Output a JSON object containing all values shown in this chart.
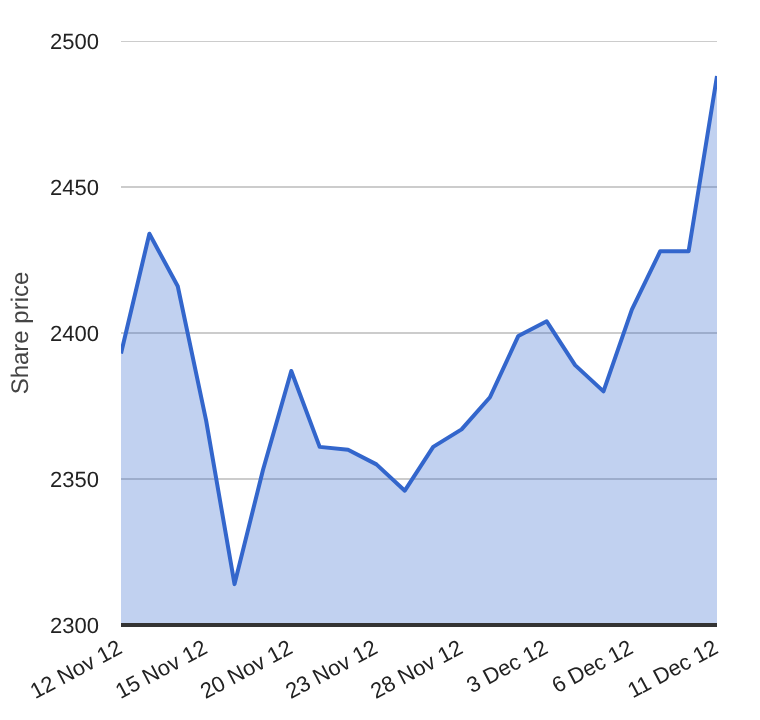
{
  "chart_data": {
    "type": "area",
    "ylabel": "Share price",
    "categories": [
      "12 Nov 12",
      null,
      null,
      "15 Nov 12",
      null,
      null,
      "20 Nov 12",
      null,
      null,
      "23 Nov 12",
      null,
      null,
      "28 Nov 12",
      null,
      null,
      "3 Dec 12",
      null,
      null,
      "6 Dec 12",
      null,
      null,
      "11 Dec 12"
    ],
    "series": [
      {
        "color": "#3366cc",
        "values": [
          2393,
          2434,
          2416,
          2370,
          2314,
          2353,
          2387,
          2361,
          2360,
          2355,
          2346,
          2361,
          2367,
          2378,
          2399,
          2404,
          2389,
          2380,
          2408,
          2428,
          2428,
          2488
        ]
      }
    ],
    "ylim": [
      2300,
      2500
    ],
    "yticks": [
      2300,
      2350,
      2400,
      2450,
      2500
    ],
    "grid": "y"
  }
}
